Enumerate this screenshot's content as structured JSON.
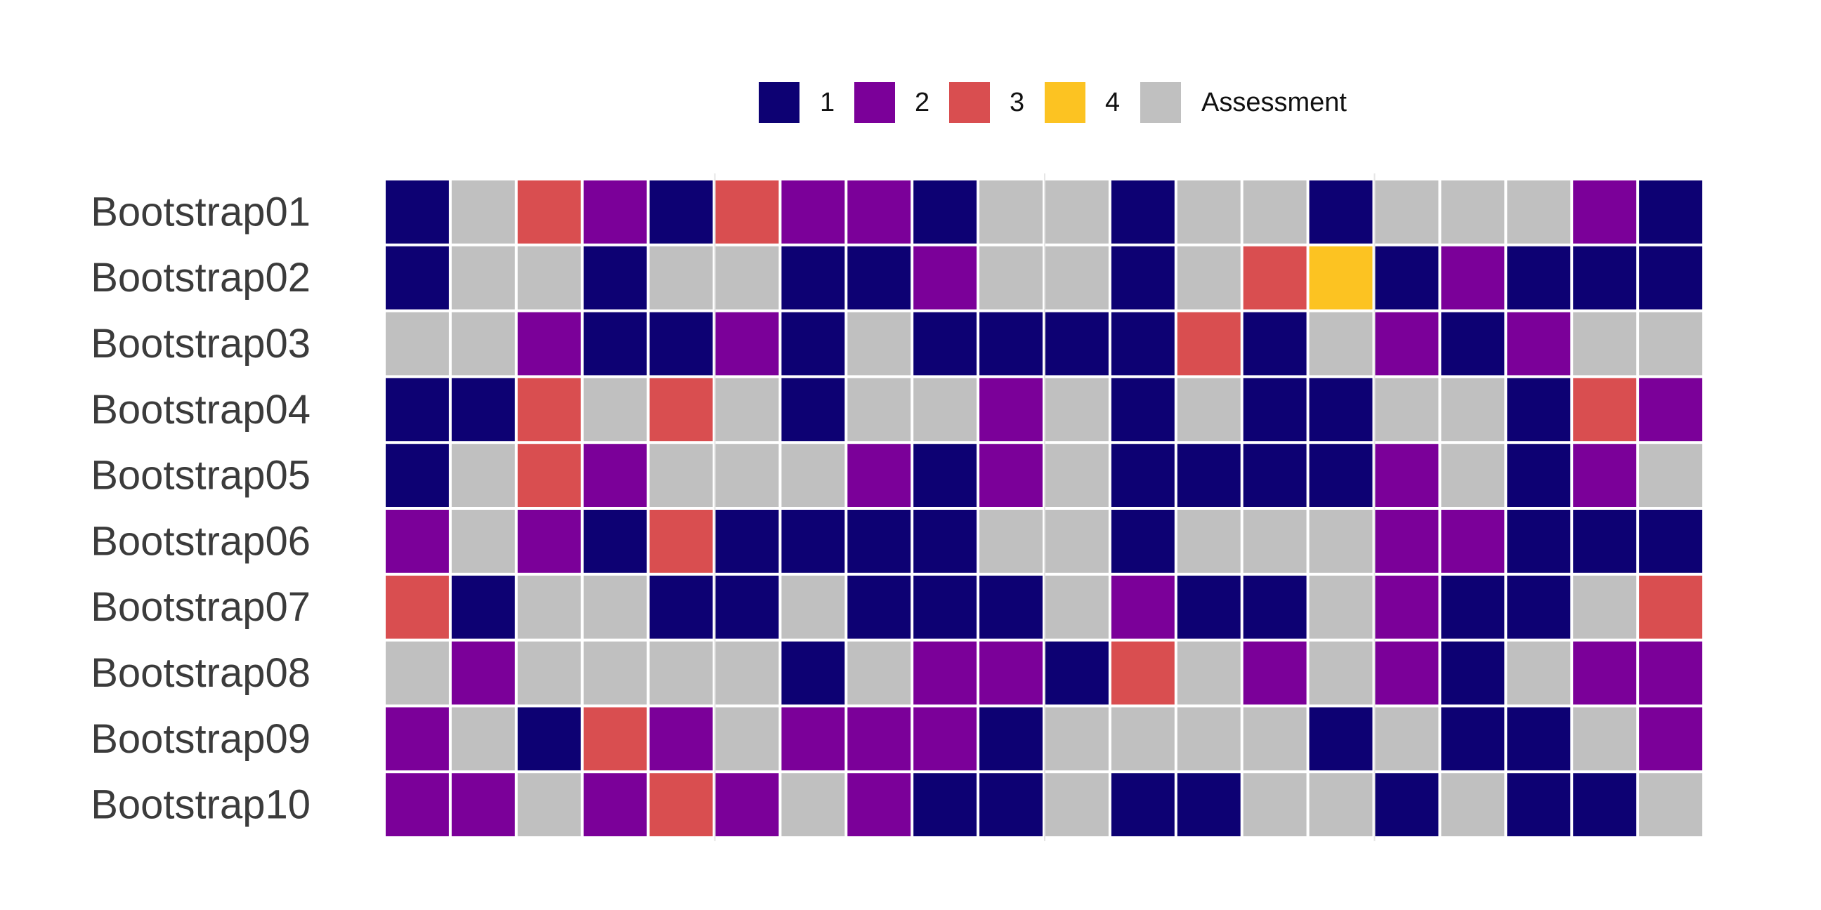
{
  "chart_data": {
    "type": "heatmap",
    "title": "",
    "xlabel": "",
    "ylabel": "",
    "grid": true,
    "legend_position": "top",
    "legend": [
      {
        "key": "1",
        "label": "1",
        "color": "#0d0173"
      },
      {
        "key": "2",
        "label": "2",
        "color": "#7b0099"
      },
      {
        "key": "3",
        "label": "3",
        "color": "#d94e50"
      },
      {
        "key": "4",
        "label": "4",
        "color": "#fcc322"
      },
      {
        "key": "A",
        "label": "Assessment",
        "color": "#c0c0c0"
      }
    ],
    "rows": [
      "Bootstrap01",
      "Bootstrap02",
      "Bootstrap03",
      "Bootstrap04",
      "Bootstrap05",
      "Bootstrap06",
      "Bootstrap07",
      "Bootstrap08",
      "Bootstrap09",
      "Bootstrap10"
    ],
    "columns": 20,
    "cells": [
      [
        "1",
        "A",
        "3",
        "2",
        "1",
        "3",
        "2",
        "2",
        "1",
        "A",
        "A",
        "1",
        "A",
        "A",
        "1",
        "A",
        "A",
        "A",
        "2",
        "1"
      ],
      [
        "1",
        "A",
        "A",
        "1",
        "A",
        "A",
        "1",
        "1",
        "2",
        "A",
        "A",
        "1",
        "A",
        "3",
        "4",
        "1",
        "2",
        "1",
        "1",
        "1"
      ],
      [
        "A",
        "A",
        "2",
        "1",
        "1",
        "2",
        "1",
        "A",
        "1",
        "1",
        "1",
        "1",
        "3",
        "1",
        "A",
        "2",
        "1",
        "2",
        "A",
        "A"
      ],
      [
        "1",
        "1",
        "3",
        "A",
        "3",
        "A",
        "1",
        "A",
        "A",
        "2",
        "A",
        "1",
        "A",
        "1",
        "1",
        "A",
        "A",
        "1",
        "3",
        "2"
      ],
      [
        "1",
        "A",
        "3",
        "2",
        "A",
        "A",
        "A",
        "2",
        "1",
        "2",
        "A",
        "1",
        "1",
        "1",
        "1",
        "2",
        "A",
        "1",
        "2",
        "A"
      ],
      [
        "2",
        "A",
        "2",
        "1",
        "3",
        "1",
        "1",
        "1",
        "1",
        "A",
        "A",
        "1",
        "A",
        "A",
        "A",
        "2",
        "2",
        "1",
        "1",
        "1"
      ],
      [
        "3",
        "1",
        "A",
        "A",
        "1",
        "1",
        "A",
        "1",
        "1",
        "1",
        "A",
        "2",
        "1",
        "1",
        "A",
        "2",
        "1",
        "1",
        "A",
        "3"
      ],
      [
        "A",
        "2",
        "A",
        "A",
        "A",
        "A",
        "1",
        "A",
        "2",
        "2",
        "1",
        "3",
        "A",
        "2",
        "A",
        "2",
        "1",
        "A",
        "2",
        "2"
      ],
      [
        "2",
        "A",
        "1",
        "3",
        "2",
        "A",
        "2",
        "2",
        "2",
        "1",
        "A",
        "A",
        "A",
        "A",
        "1",
        "A",
        "1",
        "1",
        "A",
        "2"
      ],
      [
        "2",
        "2",
        "A",
        "2",
        "3",
        "2",
        "A",
        "2",
        "1",
        "1",
        "A",
        "1",
        "1",
        "A",
        "A",
        "1",
        "A",
        "1",
        "1",
        "A"
      ]
    ]
  }
}
